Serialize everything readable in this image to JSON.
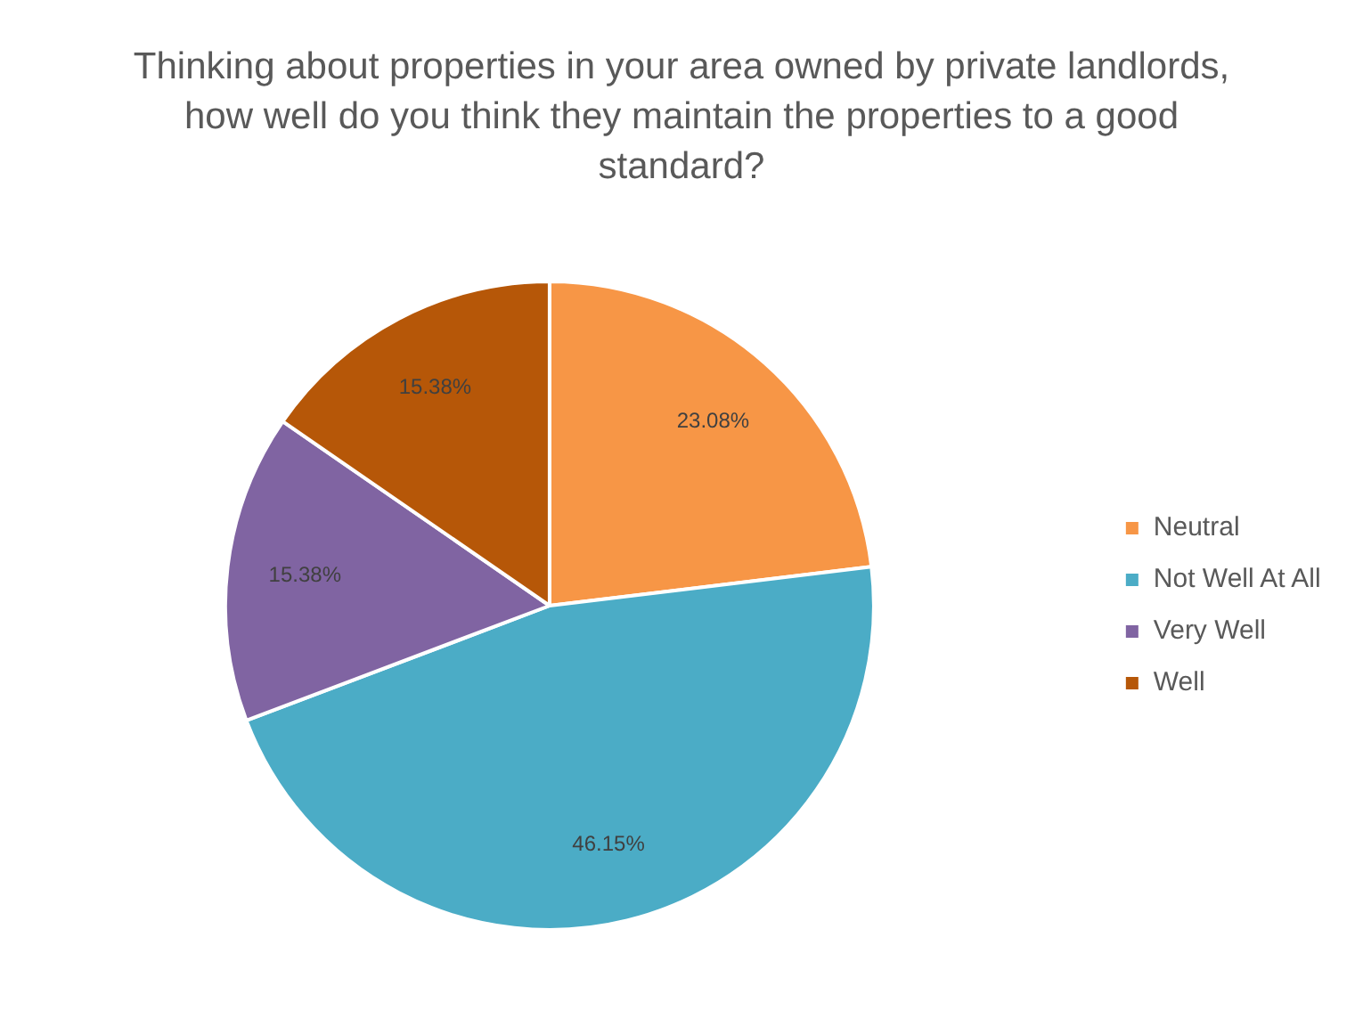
{
  "chart_data": {
    "type": "pie",
    "title": "Thinking about properties in your area owned by private landlords, how well do you think they maintain the properties to a good standard?",
    "categories": [
      "Neutral",
      "Not Well At All",
      "Very Well",
      "Well"
    ],
    "values": [
      23.08,
      46.15,
      15.38,
      15.38
    ],
    "value_labels": [
      "23.08%",
      "46.15%",
      "15.38%",
      "15.38%"
    ],
    "colors": [
      "#f79646",
      "#4bacc6",
      "#8064a2",
      "#b65708"
    ],
    "legend": "right"
  }
}
